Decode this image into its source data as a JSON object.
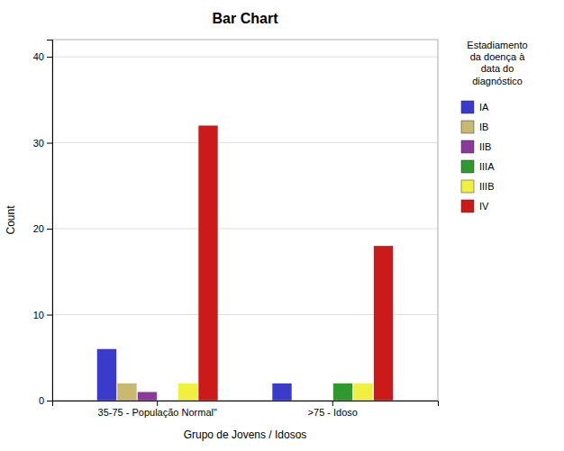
{
  "chart_data": {
    "type": "bar",
    "title": "Bar Chart",
    "xlabel": "Grupo de Jovens / Idosos",
    "ylabel": "Count",
    "legend_title": "Estadiamento\nda doença à\ndata do\ndiagnóstico",
    "categories": [
      "35-75 - População Normal\"",
      ">75 - Idoso"
    ],
    "series": [
      {
        "name": "IA",
        "color": "#3A3ACC",
        "values": [
          6,
          2
        ]
      },
      {
        "name": "IB",
        "color": "#C8B870",
        "values": [
          2,
          0
        ]
      },
      {
        "name": "IIB",
        "color": "#8B3A9A",
        "values": [
          1,
          0
        ]
      },
      {
        "name": "IIIA",
        "color": "#2E9A2E",
        "values": [
          0,
          2
        ]
      },
      {
        "name": "IIIB",
        "color": "#F0F040",
        "values": [
          2,
          2
        ]
      },
      {
        "name": "IV",
        "color": "#CC1A1A",
        "values": [
          32,
          18
        ]
      }
    ],
    "ylim": [
      0,
      42
    ],
    "yticks": [
      0,
      10,
      20,
      30,
      40
    ],
    "grid": true,
    "legend": "right"
  }
}
